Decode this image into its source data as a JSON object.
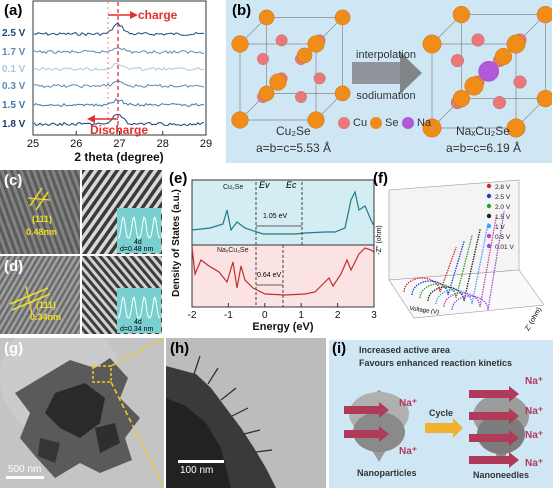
{
  "panel_labels": {
    "a": "(a)",
    "b": "(b)",
    "c": "(c)",
    "d": "(d)",
    "e": "(e)",
    "f": "(f)",
    "g": "(g)",
    "h": "(h)",
    "i": "(i)"
  },
  "panel_a": {
    "voltages": [
      "2.5 V",
      "1.7 V",
      "0.1 V",
      "0.3 V",
      "1.5 V",
      "1.8 V"
    ],
    "charge_label": "charge",
    "discharge_label": "Discharge"
  },
  "panel_b": {
    "left_name": "Cu₂Se",
    "left_lattice": "a=b=c=5.53 Å",
    "right_name": "NaₓCu₂Se",
    "right_lattice": "a=b=c=6.19 Å",
    "arrow_top": "interpolation",
    "arrow_bottom": "sodiumation",
    "legend": [
      "Cu",
      "Se",
      "Na"
    ],
    "colors": {
      "cu": "#e8787a",
      "se": "#f08c1a",
      "na": "#b05ad8",
      "bg": "#cfe6f5"
    }
  },
  "panel_c": {
    "plane": "(111)",
    "spacing": "0.48nm",
    "inset": "d=0.48 nm",
    "inset_top": "4d"
  },
  "panel_d": {
    "plane": "(111)",
    "spacing": "0.34nm",
    "inset": "d=0.34 nm",
    "inset_top": "4d"
  },
  "panel_e": {
    "top_label": "Cu₂Se",
    "bottom_label": "NaₓCu₂Se",
    "gap_top": "1.05 eV",
    "gap_bottom": "0.64 eV",
    "ev": "Ev",
    "ec": "Ec"
  },
  "panel_f": {
    "legend": [
      "2.8 V",
      "2.5 V",
      "2.0 V",
      "1.5 V",
      "1 V",
      "0.5 V",
      "0.01 V"
    ],
    "legend_colors": [
      "#d62728",
      "#1f3fbf",
      "#2ca02c",
      "#222222",
      "#3fa0ff",
      "#c040c0",
      "#9a4fd0"
    ],
    "ylabel": "-Z'' (ohm)",
    "xlabel": "Z' (ohm)",
    "zlabel": "Voltage (V)"
  },
  "panel_g": {
    "scale": "500 nm"
  },
  "panel_h": {
    "scale": "100 nm"
  },
  "panel_i": {
    "line1": "Increased active area",
    "line2": "Favours enhanced reaction kinetics",
    "ion": "Na⁺",
    "cycle": "Cycle",
    "left_caption": "Nanoparticles",
    "right_caption": "Nanoneedles"
  },
  "chart_data": [
    {
      "type": "line",
      "xlabel": "2 theta (degree)",
      "x_ticks": [
        25,
        26,
        27,
        28,
        29
      ],
      "xlim": [
        25,
        29
      ],
      "series": [
        {
          "name": "2.5 V"
        },
        {
          "name": "1.7 V"
        },
        {
          "name": "0.1 V"
        },
        {
          "name": "0.3 V"
        },
        {
          "name": "1.5 V"
        },
        {
          "name": "1.8 V"
        }
      ]
    },
    {
      "type": "line",
      "xlabel": "Energy (eV)",
      "ylabel": "Density of States (a.u.)",
      "x_ticks": [
        -2,
        -1,
        0,
        1,
        2,
        3
      ],
      "xlim": [
        -2,
        3
      ]
    }
  ]
}
